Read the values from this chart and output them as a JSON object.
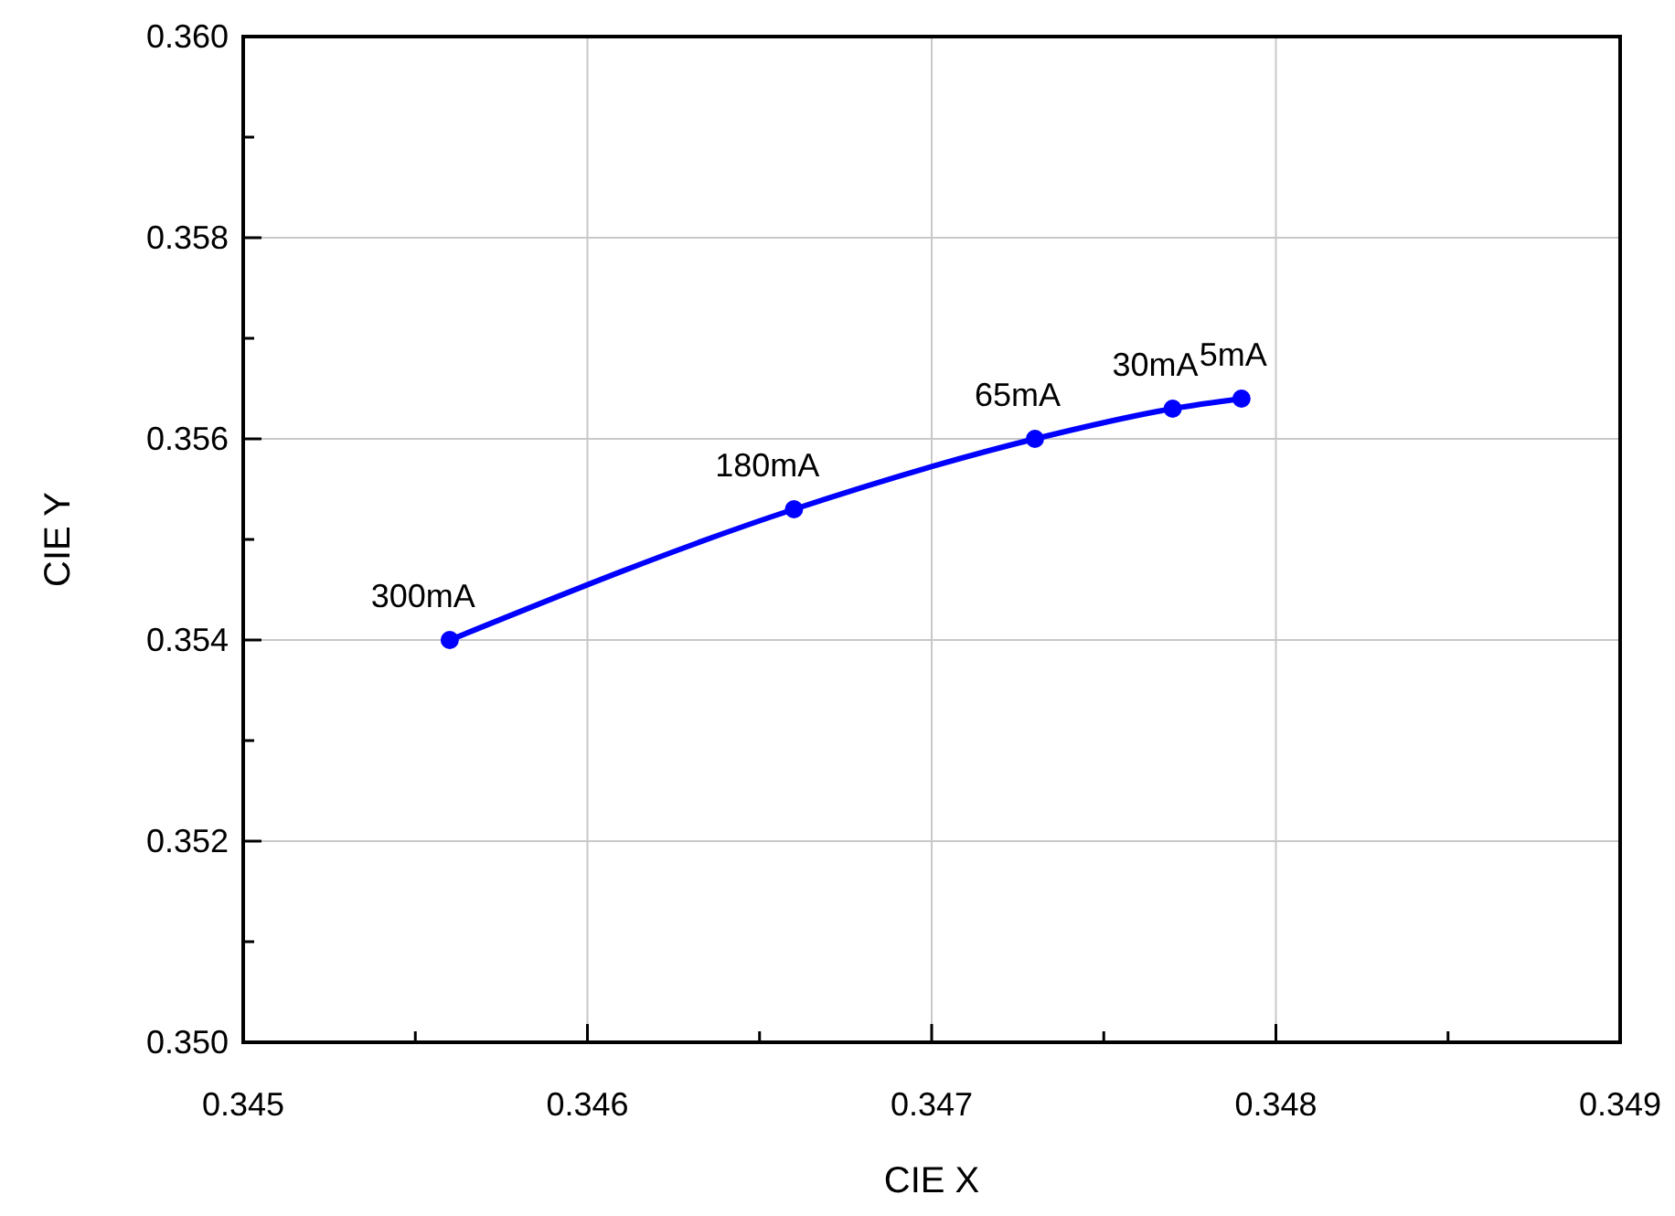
{
  "chart_data": {
    "type": "line",
    "xlabel": "CIE X",
    "ylabel": "CIE Y",
    "x": [
      0.3456,
      0.3466,
      0.3473,
      0.3477,
      0.3479
    ],
    "series": [
      {
        "color": "#0000ff",
        "values": [
          0.354,
          0.3553,
          0.356,
          0.3563,
          0.3564
        ]
      }
    ],
    "xlim": [
      0.345,
      0.349
    ],
    "ylim": [
      0.35,
      0.36
    ],
    "xticks": [
      0.345,
      {
        "value": 0.3455,
        "label": null
      },
      0.346,
      {
        "value": 0.3465,
        "label": null
      },
      0.347,
      {
        "value": 0.3475,
        "label": null
      },
      0.348,
      {
        "value": 0.3485,
        "label": null
      },
      0.349
    ],
    "yticks": [
      {
        "value": 0.35,
        "label": "0.350"
      },
      {
        "value": 0.351,
        "label": null
      },
      0.352,
      {
        "value": 0.353,
        "label": null
      },
      0.354,
      {
        "value": 0.355,
        "label": null
      },
      0.356,
      {
        "value": 0.357,
        "label": null
      },
      0.358,
      {
        "value": 0.359,
        "label": null
      },
      {
        "value": 0.36,
        "label": "0.360"
      }
    ],
    "grid": true,
    "marker": "circle",
    "line_style": "solid",
    "annotations": [
      {
        "text": "300mA",
        "x": 0.3456,
        "y": 0.354
      },
      {
        "text": "180mA",
        "x": 0.3466,
        "y": 0.3553
      },
      {
        "text": "65mA",
        "x": 0.3473,
        "y": 0.356
      },
      {
        "text": "30mA",
        "x": 0.3477,
        "y": 0.3563
      },
      {
        "text": "5mA",
        "x": 0.3479,
        "y": 0.3564
      }
    ]
  }
}
